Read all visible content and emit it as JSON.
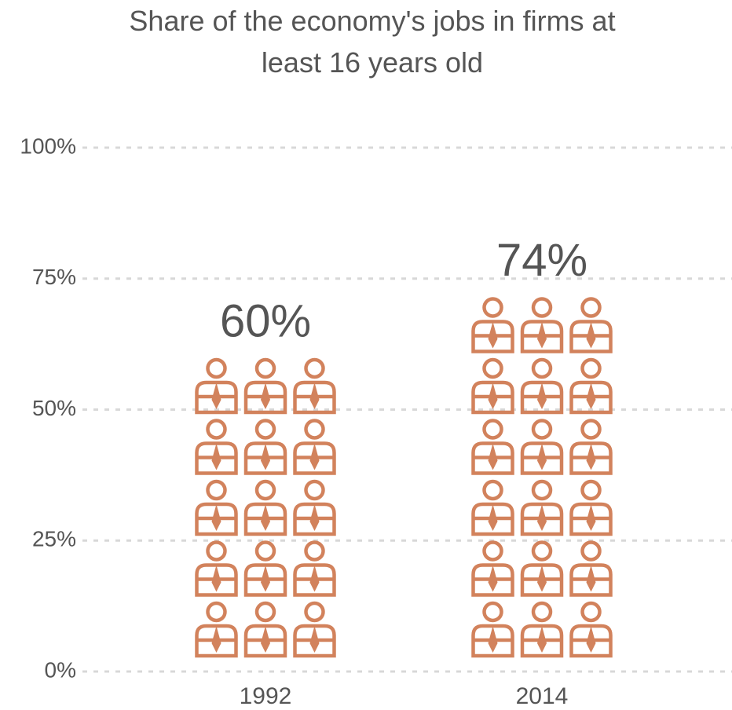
{
  "chart_data": {
    "type": "pictograph",
    "title": "Share of the economy's jobs in firms at least 16 years old",
    "categories": [
      "1992",
      "2014"
    ],
    "values": [
      60,
      74
    ],
    "value_labels": [
      "60%",
      "74%"
    ],
    "color": "#d2825c",
    "ylim": [
      0,
      100
    ],
    "yticks": [
      {
        "value": 0,
        "label": "0%"
      },
      {
        "value": 25,
        "label": "25%"
      },
      {
        "value": 50,
        "label": "50%"
      },
      {
        "value": 75,
        "label": "75%"
      },
      {
        "value": 100,
        "label": "100%"
      }
    ],
    "grid": true
  }
}
